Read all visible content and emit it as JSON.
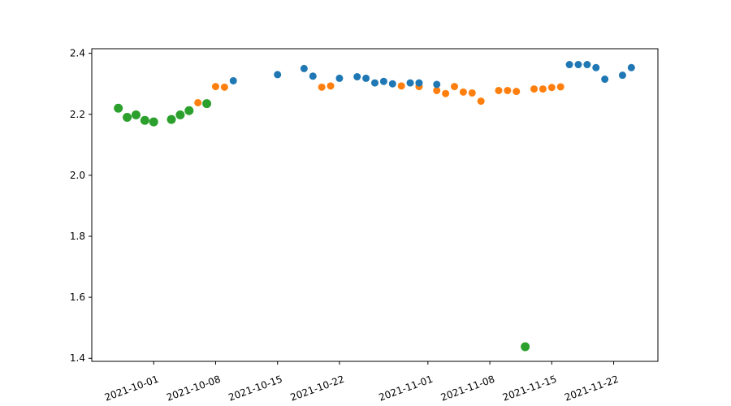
{
  "chart_data": {
    "type": "scatter",
    "title": "",
    "xlabel": "",
    "ylabel": "",
    "grid": false,
    "legend": "none",
    "xlim": [
      "2021-09-24",
      "2021-11-27"
    ],
    "ylim": [
      1.39,
      2.415
    ],
    "x_ticks": [
      "2021-10-01",
      "2021-10-08",
      "2021-10-15",
      "2021-10-22",
      "2021-11-01",
      "2021-11-08",
      "2021-11-15",
      "2021-11-22"
    ],
    "y_ticks": [
      "1.4",
      "1.6",
      "1.8",
      "2.0",
      "2.2",
      "2.4"
    ],
    "series": [
      {
        "color": "#2ca02c",
        "marker_size": 5.5,
        "points": [
          {
            "x": "2021-09-27",
            "y": 2.22
          },
          {
            "x": "2021-09-28",
            "y": 2.19
          },
          {
            "x": "2021-09-29",
            "y": 2.198
          },
          {
            "x": "2021-09-30",
            "y": 2.18
          },
          {
            "x": "2021-10-01",
            "y": 2.175
          },
          {
            "x": "2021-10-03",
            "y": 2.183
          },
          {
            "x": "2021-10-04",
            "y": 2.198
          },
          {
            "x": "2021-10-05",
            "y": 2.212
          },
          {
            "x": "2021-10-07",
            "y": 2.235
          },
          {
            "x": "2021-11-12",
            "y": 1.438
          }
        ]
      },
      {
        "color": "#ff7f0e",
        "marker_size": 4.5,
        "points": [
          {
            "x": "2021-10-06",
            "y": 2.238
          },
          {
            "x": "2021-10-08",
            "y": 2.291
          },
          {
            "x": "2021-10-09",
            "y": 2.289
          },
          {
            "x": "2021-10-20",
            "y": 2.289
          },
          {
            "x": "2021-10-21",
            "y": 2.293
          },
          {
            "x": "2021-10-29",
            "y": 2.293
          },
          {
            "x": "2021-10-31",
            "y": 2.291
          },
          {
            "x": "2021-11-02",
            "y": 2.278
          },
          {
            "x": "2021-11-03",
            "y": 2.268
          },
          {
            "x": "2021-11-04",
            "y": 2.291
          },
          {
            "x": "2021-11-05",
            "y": 2.273
          },
          {
            "x": "2021-11-06",
            "y": 2.27
          },
          {
            "x": "2021-11-07",
            "y": 2.243
          },
          {
            "x": "2021-11-09",
            "y": 2.278
          },
          {
            "x": "2021-11-10",
            "y": 2.278
          },
          {
            "x": "2021-11-11",
            "y": 2.275
          },
          {
            "x": "2021-11-13",
            "y": 2.283
          },
          {
            "x": "2021-11-14",
            "y": 2.283
          },
          {
            "x": "2021-11-15",
            "y": 2.288
          },
          {
            "x": "2021-11-16",
            "y": 2.29
          }
        ]
      },
      {
        "color": "#1f77b4",
        "marker_size": 4.5,
        "points": [
          {
            "x": "2021-10-10",
            "y": 2.31
          },
          {
            "x": "2021-10-15",
            "y": 2.33
          },
          {
            "x": "2021-10-18",
            "y": 2.35
          },
          {
            "x": "2021-10-19",
            "y": 2.325
          },
          {
            "x": "2021-10-22",
            "y": 2.318
          },
          {
            "x": "2021-10-24",
            "y": 2.323
          },
          {
            "x": "2021-10-25",
            "y": 2.318
          },
          {
            "x": "2021-10-26",
            "y": 2.303
          },
          {
            "x": "2021-10-27",
            "y": 2.308
          },
          {
            "x": "2021-10-28",
            "y": 2.3
          },
          {
            "x": "2021-10-30",
            "y": 2.303
          },
          {
            "x": "2021-10-31",
            "y": 2.303
          },
          {
            "x": "2021-11-02",
            "y": 2.298
          },
          {
            "x": "2021-11-17",
            "y": 2.363
          },
          {
            "x": "2021-11-18",
            "y": 2.363
          },
          {
            "x": "2021-11-19",
            "y": 2.363
          },
          {
            "x": "2021-11-20",
            "y": 2.353
          },
          {
            "x": "2021-11-21",
            "y": 2.315
          },
          {
            "x": "2021-11-23",
            "y": 2.328
          },
          {
            "x": "2021-11-24",
            "y": 2.353
          }
        ]
      }
    ]
  }
}
